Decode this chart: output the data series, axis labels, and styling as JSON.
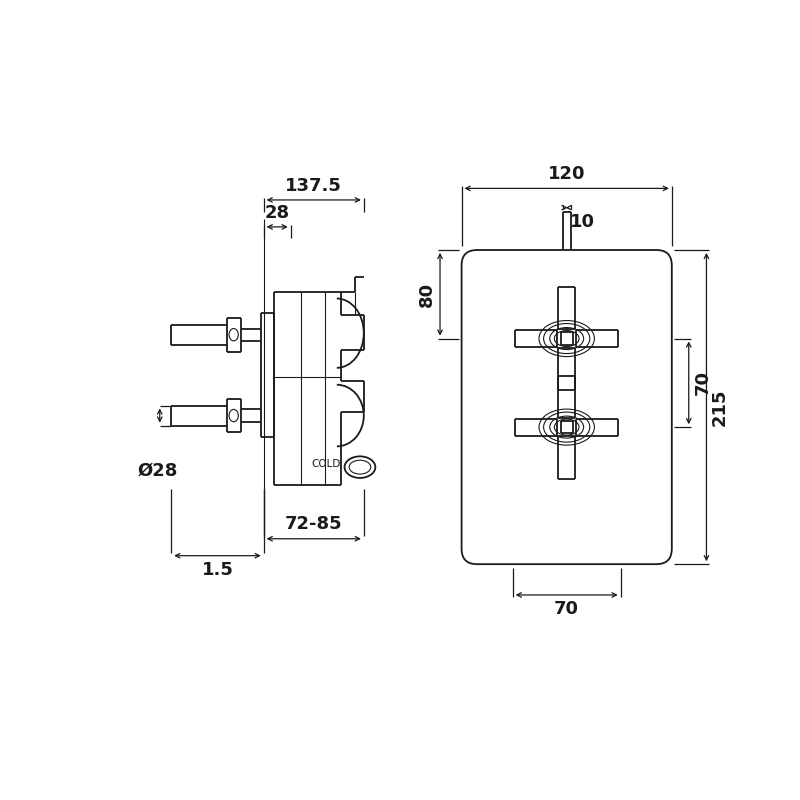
{
  "bg_color": "#ffffff",
  "line_color": "#1a1a1a",
  "lw_main": 1.3,
  "lw_thin": 0.8,
  "lw_dim": 0.9,
  "fontsize_dim": 13,
  "fontsize_small": 7.5,
  "left_view": {
    "dim_137_5": "137.5",
    "dim_28_top": "28",
    "dim_72_85": "72-85",
    "dim_28_dia": "Ø28",
    "dim_1_5": "1.5",
    "cold_label": "COLD"
  },
  "right_view": {
    "dim_120": "120",
    "dim_10": "10",
    "dim_80": "80",
    "dim_70_h": "70",
    "dim_215": "215",
    "dim_70_w": "70"
  }
}
